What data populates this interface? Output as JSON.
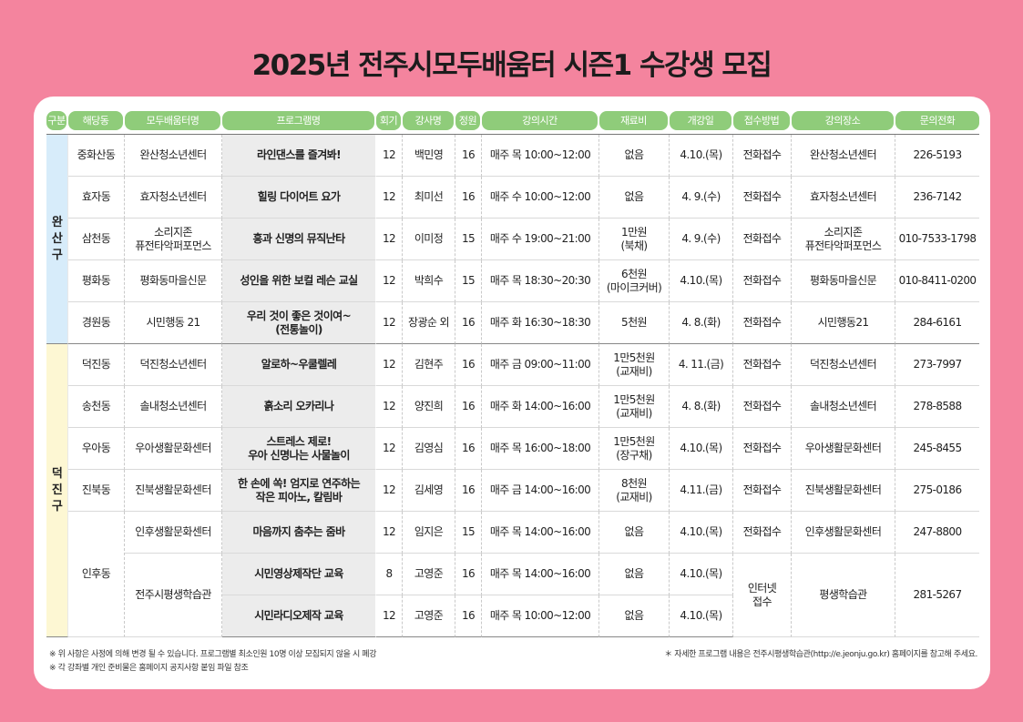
{
  "title": "2025년 전주시모두배움터 시즌1 수강생 모집",
  "columns": [
    "구분",
    "해당동",
    "모두배움터명",
    "프로그램명",
    "회기",
    "강사명",
    "정원",
    "강의시간",
    "재료비",
    "개강일",
    "접수방법",
    "강의장소",
    "문의전화"
  ],
  "districts": {
    "wansan": {
      "name": "완산구",
      "chars": [
        "완",
        "산",
        "구"
      ]
    },
    "deokjin": {
      "name": "덕진구",
      "chars": [
        "덕",
        "진",
        "구"
      ]
    }
  },
  "rows": [
    {
      "dong": "중화산동",
      "center": "완산청소년센터",
      "program": "라인댄스를 즐겨봐!",
      "sessions": "12",
      "teacher": "백민영",
      "capacity": "16",
      "time": "매주 목 10:00~12:00",
      "fee": "없음",
      "start": "4.10.(목)",
      "method": "전화접수",
      "place": "완산청소년센터",
      "phone": "226-5193"
    },
    {
      "dong": "효자동",
      "center": "효자청소년센터",
      "program": "힐링 다이어트 요가",
      "sessions": "12",
      "teacher": "최미선",
      "capacity": "16",
      "time": "매주 수 10:00~12:00",
      "fee": "없음",
      "start": "4. 9.(수)",
      "method": "전화접수",
      "place": "효자청소년센터",
      "phone": "236-7142"
    },
    {
      "dong": "삼천동",
      "center": "소리지존\n퓨전타악퍼포먼스",
      "program": "흥과 신명의 뮤직난타",
      "sessions": "12",
      "teacher": "이미정",
      "capacity": "15",
      "time": "매주 수 19:00~21:00",
      "fee": "1만원\n(북채)",
      "start": "4. 9.(수)",
      "method": "전화접수",
      "place": "소리지존\n퓨전타악퍼포먼스",
      "phone": "010-7533-1798"
    },
    {
      "dong": "평화동",
      "center": "평화동마을신문",
      "program": "성인을 위한 보컬 레슨 교실",
      "sessions": "12",
      "teacher": "박희수",
      "capacity": "15",
      "time": "매주 목 18:30~20:30",
      "fee": "6천원\n(마이크커버)",
      "start": "4.10.(목)",
      "method": "전화접수",
      "place": "평화동마을신문",
      "phone": "010-8411-0200"
    },
    {
      "dong": "경원동",
      "center": "시민행동 21",
      "program": "우리 것이 좋은 것이여~\n(전통놀이)",
      "sessions": "12",
      "teacher": "장광순 외",
      "capacity": "16",
      "time": "매주 화 16:30~18:30",
      "fee": "5천원",
      "start": "4. 8.(화)",
      "method": "전화접수",
      "place": "시민행동21",
      "phone": "284-6161"
    },
    {
      "dong": "덕진동",
      "center": "덕진청소년센터",
      "program": "알로하~우쿨렐레",
      "sessions": "12",
      "teacher": "김현주",
      "capacity": "16",
      "time": "매주 금 09:00~11:00",
      "fee": "1만5천원\n(교재비)",
      "start": "4. 11.(금)",
      "method": "전화접수",
      "place": "덕진청소년센터",
      "phone": "273-7997"
    },
    {
      "dong": "송천동",
      "center": "솔내청소년센터",
      "program": "흙소리 오카리나",
      "sessions": "12",
      "teacher": "양진희",
      "capacity": "16",
      "time": "매주 화 14:00~16:00",
      "fee": "1만5천원\n(교재비)",
      "start": "4. 8.(화)",
      "method": "전화접수",
      "place": "솔내청소년센터",
      "phone": "278-8588"
    },
    {
      "dong": "우아동",
      "center": "우아생활문화센터",
      "program": "스트레스 제로!\n우아 신명나는 사물놀이",
      "sessions": "12",
      "teacher": "김영심",
      "capacity": "16",
      "time": "매주 목 16:00~18:00",
      "fee": "1만5천원\n(장구채)",
      "start": "4.10.(목)",
      "method": "전화접수",
      "place": "우아생활문화센터",
      "phone": "245-8455"
    },
    {
      "dong": "진북동",
      "center": "진북생활문화센터",
      "program": "한 손에 쏙! 엄지로 연주하는\n작은 피아노, 칼림바",
      "sessions": "12",
      "teacher": "김세영",
      "capacity": "16",
      "time": "매주 금 14:00~16:00",
      "fee": "8천원\n(교재비)",
      "start": "4.11.(금)",
      "method": "전화접수",
      "place": "진북생활문화센터",
      "phone": "275-0186"
    },
    {
      "dong": "인후동",
      "center": "인후생활문화센터",
      "program": "마음까지 춤추는 줌바",
      "sessions": "12",
      "teacher": "임지은",
      "capacity": "15",
      "time": "매주 목 14:00~16:00",
      "fee": "없음",
      "start": "4.10.(목)",
      "method": "전화접수",
      "place": "인후생활문화센터",
      "phone": "247-8800"
    },
    {
      "dong": "",
      "center": "전주시평생학습관",
      "program": "시민영상제작단 교육",
      "sessions": "8",
      "teacher": "고영준",
      "capacity": "16",
      "time": "매주 목 14:00~16:00",
      "fee": "없음",
      "start": "4.10.(목)",
      "method": "인터넷\n접수",
      "place": "평생학습관",
      "phone": "281-5267"
    },
    {
      "dong": "",
      "center": "",
      "program": "시민라디오제작 교육",
      "sessions": "12",
      "teacher": "고영준",
      "capacity": "16",
      "time": "매주 목 10:00~12:00",
      "fee": "없음",
      "start": "4.10.(목)",
      "method": "",
      "place": "",
      "phone": ""
    }
  ],
  "notes": {
    "left1": "※ 위 사항은 사정에 의해 변경 될 수 있습니다. 프로그램별 최소인원 10명 이상 모집되지 않을 시 폐강",
    "left2": "※ 각 강좌별 개인 준비물은 홈페이지 공지사항 붙임 파일 참조",
    "right": "＊ 자세한 프로그램 내용은 전주시평생학습관(http://e.jeonju.go.kr) 홈페이지를 참고해 주세요."
  }
}
